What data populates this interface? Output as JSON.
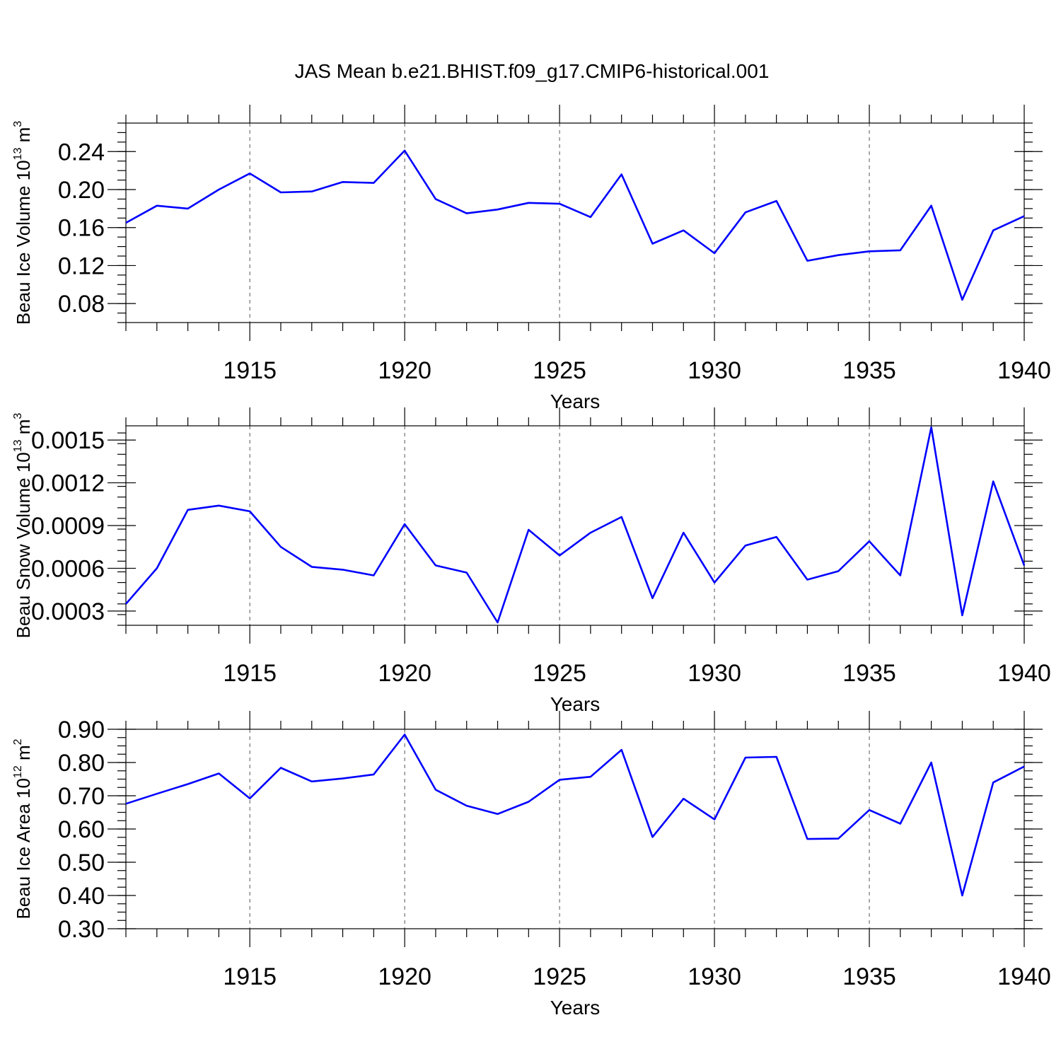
{
  "title": "JAS Mean b.e21.BHIST.f09_g17.CMIP6-historical.001",
  "colors": {
    "series": "#0000ff",
    "grid": "#555555"
  },
  "chart_data": [
    {
      "type": "line",
      "ylabel": "Beau Ice Volume 10^13 m^3",
      "ylabel_parts": {
        "main": "Beau Ice Volume 10",
        "exp1": "13",
        "mid": " m",
        "exp2": "3"
      },
      "xlabel": "Years",
      "xlim": [
        1911,
        1940
      ],
      "ylim": [
        0.06,
        0.27
      ],
      "yticks": [
        "0.08",
        "0.12",
        "0.16",
        "0.20",
        "0.24"
      ],
      "ytick_values": [
        0.08,
        0.12,
        0.16,
        0.2,
        0.24
      ],
      "xticks": [
        1915,
        1920,
        1925,
        1930,
        1935,
        1940
      ],
      "grid": "vertical dashed at major x ticks",
      "x": [
        1911,
        1912,
        1913,
        1914,
        1915,
        1916,
        1917,
        1918,
        1919,
        1920,
        1921,
        1922,
        1923,
        1924,
        1925,
        1926,
        1927,
        1928,
        1929,
        1930,
        1931,
        1932,
        1933,
        1934,
        1935,
        1936,
        1937,
        1938,
        1939,
        1940
      ],
      "values": [
        0.165,
        0.183,
        0.18,
        0.2,
        0.217,
        0.197,
        0.198,
        0.208,
        0.207,
        0.241,
        0.19,
        0.175,
        0.179,
        0.186,
        0.185,
        0.171,
        0.216,
        0.143,
        0.157,
        0.133,
        0.176,
        0.188,
        0.125,
        0.131,
        0.135,
        0.136,
        0.183,
        0.084,
        0.157,
        0.172
      ]
    },
    {
      "type": "line",
      "ylabel": "Beau Snow Volume 10^13 m^3",
      "ylabel_parts": {
        "main": "Beau Snow Volume 10",
        "exp1": "13",
        "mid": " m",
        "exp2": "3"
      },
      "xlabel": "Years",
      "xlim": [
        1911,
        1940
      ],
      "ylim": [
        0.0002,
        0.0016
      ],
      "yticks": [
        "0.0003",
        "0.0006",
        "0.0009",
        "0.0012",
        "0.0015"
      ],
      "ytick_values": [
        0.0003,
        0.0006,
        0.0009,
        0.0012,
        0.0015
      ],
      "xticks": [
        1915,
        1920,
        1925,
        1930,
        1935,
        1940
      ],
      "grid": "vertical dashed at major x ticks",
      "x": [
        1911,
        1912,
        1913,
        1914,
        1915,
        1916,
        1917,
        1918,
        1919,
        1920,
        1921,
        1922,
        1923,
        1924,
        1925,
        1926,
        1927,
        1928,
        1929,
        1930,
        1931,
        1932,
        1933,
        1934,
        1935,
        1936,
        1937,
        1938,
        1939,
        1940
      ],
      "values": [
        0.00035,
        0.0006,
        0.00101,
        0.00104,
        0.001,
        0.00075,
        0.00061,
        0.00059,
        0.00055,
        0.00091,
        0.00062,
        0.00057,
        0.00022,
        0.00087,
        0.00069,
        0.00085,
        0.00096,
        0.00039,
        0.00085,
        0.0005,
        0.00076,
        0.00082,
        0.00052,
        0.00058,
        0.00079,
        0.00055,
        0.00159,
        0.00027,
        0.00121,
        0.00062
      ]
    },
    {
      "type": "line",
      "ylabel": "Beau Ice Area 10^12 m^2",
      "ylabel_parts": {
        "main": "Beau Ice Area 10",
        "exp1": "12",
        "mid": " m",
        "exp2": "2"
      },
      "xlabel": "Years",
      "xlim": [
        1911,
        1940
      ],
      "ylim": [
        0.3,
        0.9
      ],
      "yticks": [
        "0.30",
        "0.40",
        "0.50",
        "0.60",
        "0.70",
        "0.80",
        "0.90"
      ],
      "ytick_values": [
        0.3,
        0.4,
        0.5,
        0.6,
        0.7,
        0.8,
        0.9
      ],
      "xticks": [
        1915,
        1920,
        1925,
        1930,
        1935,
        1940
      ],
      "grid": "vertical dashed at major x ticks",
      "x": [
        1911,
        1912,
        1913,
        1914,
        1915,
        1916,
        1917,
        1918,
        1919,
        1920,
        1921,
        1922,
        1923,
        1924,
        1925,
        1926,
        1927,
        1928,
        1929,
        1930,
        1931,
        1932,
        1933,
        1934,
        1935,
        1936,
        1937,
        1938,
        1939,
        1940
      ],
      "values": [
        0.676,
        0.706,
        0.735,
        0.767,
        0.692,
        0.784,
        0.743,
        0.752,
        0.764,
        0.884,
        0.718,
        0.67,
        0.645,
        0.682,
        0.748,
        0.757,
        0.838,
        0.576,
        0.691,
        0.629,
        0.815,
        0.817,
        0.57,
        0.571,
        0.657,
        0.616,
        0.8,
        0.4,
        0.74,
        0.788
      ]
    }
  ]
}
